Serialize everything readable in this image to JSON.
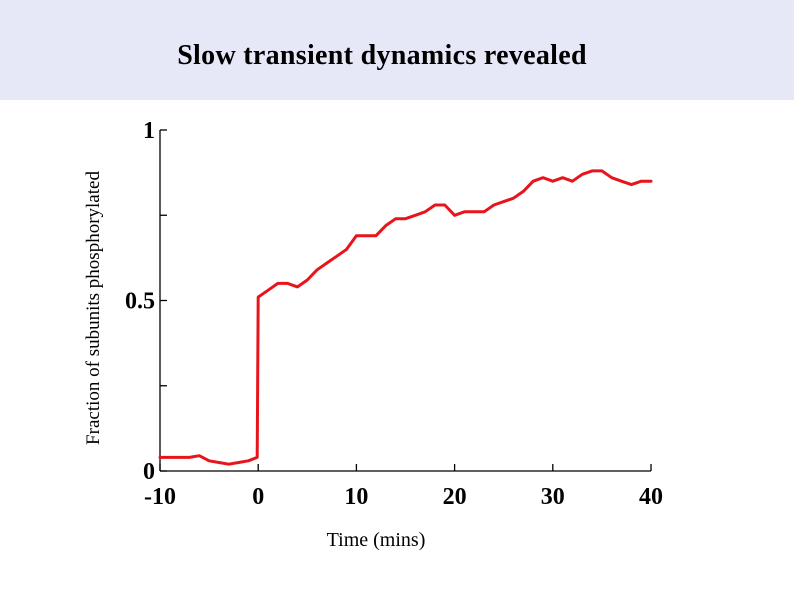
{
  "slide": {
    "title": "Slow transient dynamics revealed"
  },
  "colors": {
    "title_band": "#e6e8f8",
    "series_line": "#e8141c",
    "axis": "#000000"
  },
  "chart_data": {
    "type": "line",
    "title": "Slow transient dynamics revealed",
    "xlabel": "Time (mins)",
    "ylabel": "Fraction of subunits phosphorylated",
    "xlim": [
      -10,
      40
    ],
    "ylim": [
      0,
      1
    ],
    "x_ticks": [
      -10,
      0,
      10,
      20,
      30,
      40
    ],
    "x_tick_labels": [
      "-10",
      "0",
      "10",
      "20",
      "30",
      "40"
    ],
    "y_ticks": [
      0,
      0.25,
      0.5,
      0.75,
      1
    ],
    "y_tick_labels": [
      "0",
      "",
      "0.5",
      "",
      "1"
    ],
    "grid": false,
    "legend": "none",
    "series": [
      {
        "color": "#e8141c",
        "x": [
          -10,
          -9,
          -8,
          -7,
          -6,
          -5,
          -4,
          -3,
          -2,
          -1,
          -0.1,
          0,
          0.5,
          1,
          2,
          3,
          4,
          5,
          6,
          7,
          8,
          9,
          10,
          11,
          12,
          13,
          14,
          15,
          16,
          17,
          18,
          19,
          20,
          21,
          22,
          23,
          24,
          25,
          26,
          27,
          28,
          29,
          30,
          31,
          32,
          33,
          34,
          35,
          36,
          37,
          38,
          39,
          40
        ],
        "y": [
          0.04,
          0.04,
          0.04,
          0.04,
          0.045,
          0.03,
          0.025,
          0.02,
          0.025,
          0.03,
          0.04,
          0.51,
          0.52,
          0.53,
          0.55,
          0.55,
          0.54,
          0.56,
          0.59,
          0.61,
          0.63,
          0.65,
          0.69,
          0.69,
          0.69,
          0.72,
          0.74,
          0.74,
          0.75,
          0.76,
          0.78,
          0.78,
          0.75,
          0.76,
          0.76,
          0.76,
          0.78,
          0.79,
          0.8,
          0.82,
          0.85,
          0.86,
          0.85,
          0.86,
          0.85,
          0.87,
          0.88,
          0.88,
          0.86,
          0.85,
          0.84,
          0.85,
          0.85
        ]
      }
    ]
  }
}
